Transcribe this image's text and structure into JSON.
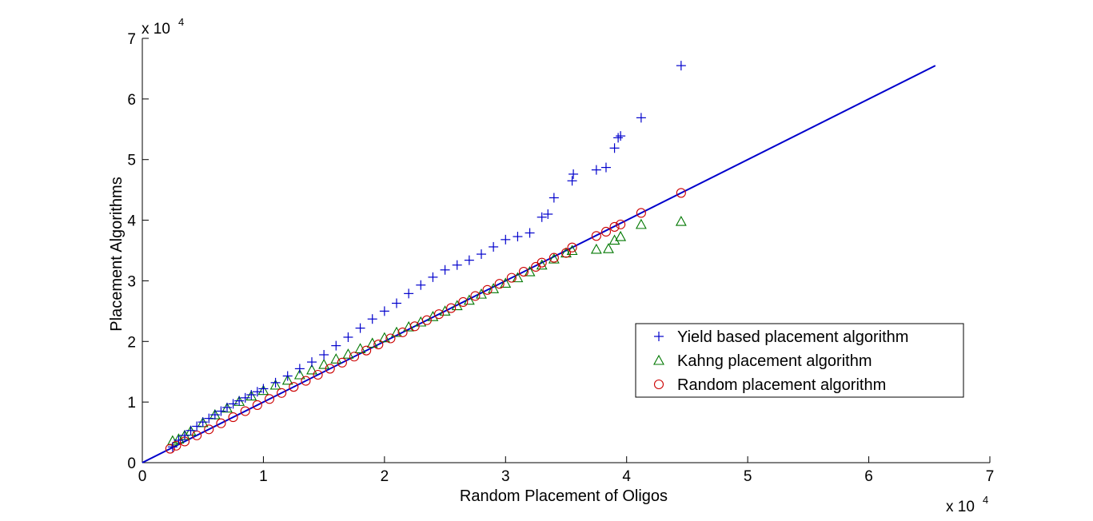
{
  "chart_data": {
    "type": "scatter",
    "xlabel": "Random Placement of Oligos",
    "ylabel": "Placement Algorithms",
    "x_multiplier_label": "x 10",
    "x_multiplier_exp": "4",
    "y_multiplier_label": "x 10",
    "y_multiplier_exp": "4",
    "xlim": [
      0,
      70000
    ],
    "ylim": [
      0,
      70000
    ],
    "x_ticks": [
      0,
      10000,
      20000,
      30000,
      40000,
      50000,
      60000,
      70000
    ],
    "x_tick_labels": [
      "0",
      "1",
      "2",
      "3",
      "4",
      "5",
      "6",
      "7"
    ],
    "y_ticks": [
      0,
      10000,
      20000,
      30000,
      40000,
      50000,
      60000,
      70000
    ],
    "y_tick_labels": [
      "0",
      "1",
      "2",
      "3",
      "4",
      "5",
      "6",
      "7"
    ],
    "grid": false,
    "legend_position": "right",
    "reference_line": {
      "x": [
        0,
        65500
      ],
      "y": [
        0,
        65500
      ],
      "color": "#0000cc"
    },
    "series": [
      {
        "name": "Yield based placement algorithm",
        "marker": "plus",
        "color": "#0000cc",
        "x": [
          2500,
          3000,
          3500,
          4000,
          4500,
          5000,
          5500,
          6000,
          6500,
          7000,
          7500,
          8000,
          8500,
          9000,
          9500,
          10000,
          11000,
          12000,
          13000,
          14000,
          15000,
          16000,
          17000,
          18000,
          19000,
          20000,
          21000,
          22000,
          23000,
          24000,
          25000,
          26000,
          27000,
          28000,
          29000,
          30000,
          31000,
          32000,
          33000,
          33500,
          34000,
          35500,
          35600,
          37500,
          38300,
          39000,
          39300,
          39500,
          41200,
          44500
        ],
        "y": [
          2600,
          3700,
          4500,
          5300,
          6000,
          6700,
          7300,
          7900,
          8500,
          9100,
          9700,
          10200,
          10700,
          11200,
          11700,
          12200,
          13200,
          14300,
          15500,
          16600,
          17800,
          19300,
          20700,
          22200,
          23700,
          25000,
          26300,
          27900,
          29300,
          30600,
          31800,
          32600,
          33400,
          34400,
          35600,
          36800,
          37300,
          37900,
          40500,
          41000,
          43700,
          46500,
          47600,
          48300,
          48700,
          51900,
          53600,
          53900,
          56900,
          65500
        ]
      },
      {
        "name": "Kahng placement algorithm",
        "marker": "triangle",
        "color": "#007700",
        "x": [
          2500,
          3000,
          3500,
          4000,
          5000,
          6000,
          7000,
          8000,
          9000,
          10000,
          11000,
          12000,
          13000,
          14000,
          15000,
          16000,
          17000,
          18000,
          19000,
          20000,
          21000,
          22000,
          23000,
          24000,
          25000,
          26000,
          27000,
          28000,
          29000,
          30000,
          31000,
          32000,
          33000,
          34000,
          35000,
          35500,
          37500,
          38500,
          39000,
          39500,
          41200,
          44500
        ],
        "y": [
          3600,
          3900,
          4500,
          5200,
          6600,
          7900,
          9000,
          10100,
          11000,
          11900,
          12800,
          13600,
          14500,
          15300,
          16200,
          17100,
          17900,
          18800,
          19700,
          20600,
          21500,
          22400,
          23200,
          24100,
          25000,
          25900,
          26800,
          27800,
          28700,
          29600,
          30500,
          31500,
          32600,
          33600,
          34600,
          35000,
          35200,
          35300,
          36700,
          37300,
          39300,
          39800
        ]
      },
      {
        "name": "Random placement algorithm",
        "marker": "circle",
        "color": "#cc0000",
        "x": [
          2300,
          2800,
          3500,
          4500,
          5500,
          6500,
          7500,
          8500,
          9500,
          10500,
          11500,
          12500,
          13500,
          14500,
          15500,
          16500,
          17500,
          18500,
          19500,
          20500,
          21500,
          22500,
          23500,
          24500,
          25500,
          26500,
          27500,
          28500,
          29500,
          30500,
          31500,
          32500,
          33000,
          34000,
          35000,
          35500,
          37500,
          38300,
          39000,
          39500,
          41200,
          44500
        ],
        "y": [
          2300,
          2800,
          3500,
          4500,
          5500,
          6500,
          7500,
          8500,
          9500,
          10500,
          11500,
          12500,
          13500,
          14500,
          15500,
          16500,
          17500,
          18500,
          19500,
          20500,
          21500,
          22500,
          23500,
          24500,
          25500,
          26500,
          27500,
          28500,
          29500,
          30500,
          31500,
          32300,
          33000,
          33800,
          34600,
          35500,
          37400,
          38100,
          38900,
          39300,
          41200,
          44500
        ]
      }
    ]
  }
}
